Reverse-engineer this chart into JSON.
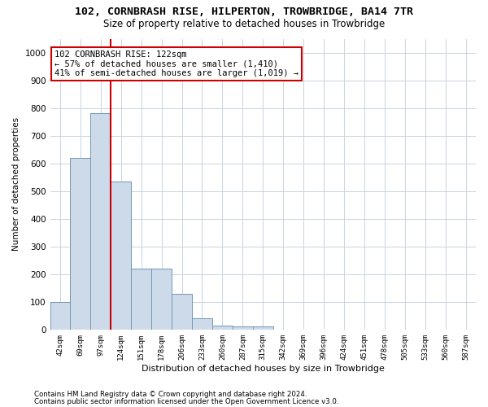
{
  "title": "102, CORNBRASH RISE, HILPERTON, TROWBRIDGE, BA14 7TR",
  "subtitle": "Size of property relative to detached houses in Trowbridge",
  "xlabel": "Distribution of detached houses by size in Trowbridge",
  "ylabel": "Number of detached properties",
  "bar_categories": [
    "42sqm",
    "69sqm",
    "97sqm",
    "124sqm",
    "151sqm",
    "178sqm",
    "206sqm",
    "233sqm",
    "260sqm",
    "287sqm",
    "315sqm",
    "342sqm",
    "369sqm",
    "396sqm",
    "424sqm",
    "451sqm",
    "478sqm",
    "505sqm",
    "533sqm",
    "560sqm",
    "587sqm"
  ],
  "bar_values": [
    100,
    620,
    780,
    535,
    220,
    220,
    130,
    40,
    15,
    10,
    10,
    0,
    0,
    0,
    0,
    0,
    0,
    0,
    0,
    0,
    0
  ],
  "bar_color": "#cddaea",
  "bar_edge_color": "#7098b8",
  "annotation_line1": "102 CORNBRASH RISE: 122sqm",
  "annotation_line2": "← 57% of detached houses are smaller (1,410)",
  "annotation_line3": "41% of semi-detached houses are larger (1,019) →",
  "annotation_box_color": "#ffffff",
  "annotation_box_edge": "#cc0000",
  "vline_color": "#cc0000",
  "vline_x": 2.5,
  "ylim": [
    0,
    1050
  ],
  "yticks": [
    0,
    100,
    200,
    300,
    400,
    500,
    600,
    700,
    800,
    900,
    1000
  ],
  "footer1": "Contains HM Land Registry data © Crown copyright and database right 2024.",
  "footer2": "Contains public sector information licensed under the Open Government Licence v3.0.",
  "background_color": "#ffffff",
  "grid_color": "#c8d4e0"
}
